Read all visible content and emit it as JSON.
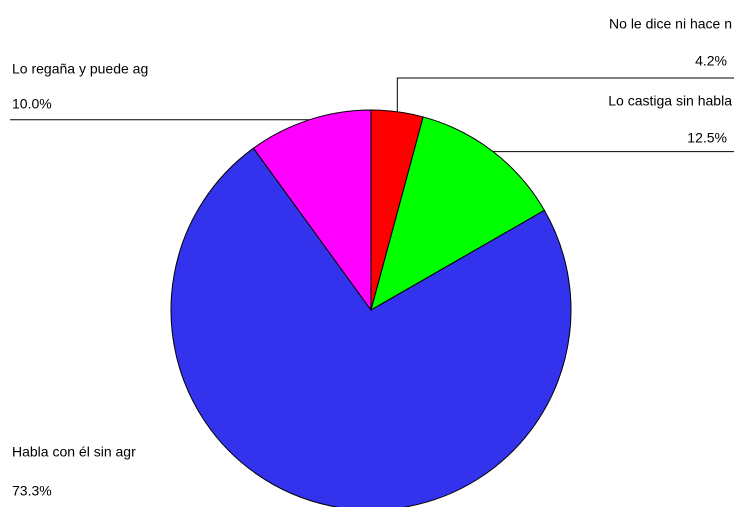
{
  "chart_data": {
    "type": "pie",
    "categories": [
      "No le dice ni hace n",
      "Lo castiga sin habla",
      "Habla con él sin agr",
      "Lo regaña y puede ag"
    ],
    "values": [
      4.2,
      12.5,
      73.3,
      10.0
    ],
    "value_labels": [
      "4.2%",
      "12.5%",
      "73.3%",
      "10.0%"
    ],
    "colors": [
      "#ff0000",
      "#00ff00",
      "#3333ee",
      "#ff00ff"
    ]
  }
}
